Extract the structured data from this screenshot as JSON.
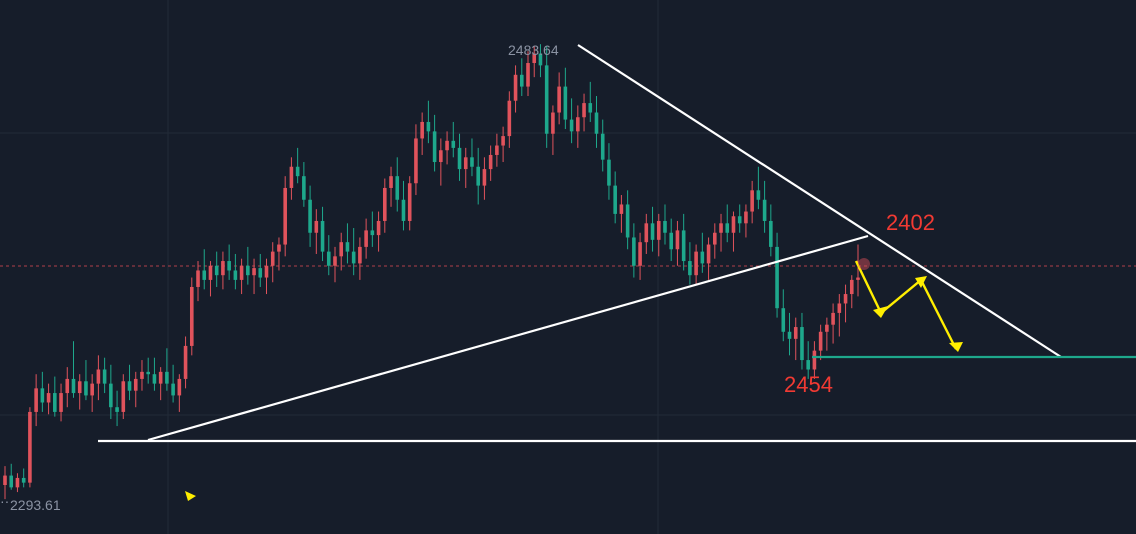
{
  "colors": {
    "background": "#161d2a",
    "grid": "#222a38",
    "up": "#e0535c",
    "down": "#1ea88c",
    "trendline": "#ffffff",
    "support_line": "#1ea88c",
    "projection": "#ffee00",
    "annotation": "#f23a33",
    "dashed_price_line": "#b0404a"
  },
  "chart_data": {
    "type": "candlestick",
    "grid": true,
    "price_labels": {
      "high": "2483.64",
      "low": "2293.61"
    },
    "annotations": [
      {
        "label": "2402",
        "color": "#f23a33"
      },
      {
        "label": "2454",
        "color": "#f23a33"
      }
    ],
    "high": 2483.64,
    "low": 2293.61,
    "ylim": [
      2275,
      2500
    ],
    "candles": [
      [
        2297,
        2305,
        2291,
        2301
      ],
      [
        2301,
        2306,
        2295,
        2296
      ],
      [
        2296,
        2302,
        2294,
        2300
      ],
      [
        2300,
        2304,
        2296,
        2298
      ],
      [
        2298,
        2330,
        2296,
        2328
      ],
      [
        2328,
        2344,
        2322,
        2338
      ],
      [
        2338,
        2345,
        2328,
        2332
      ],
      [
        2332,
        2340,
        2327,
        2336
      ],
      [
        2336,
        2343,
        2326,
        2328
      ],
      [
        2328,
        2340,
        2324,
        2336
      ],
      [
        2336,
        2347,
        2330,
        2342
      ],
      [
        2342,
        2358,
        2334,
        2336
      ],
      [
        2336,
        2344,
        2329,
        2341
      ],
      [
        2341,
        2350,
        2333,
        2335
      ],
      [
        2335,
        2344,
        2328,
        2340
      ],
      [
        2340,
        2352,
        2333,
        2346
      ],
      [
        2346,
        2351,
        2336,
        2340
      ],
      [
        2340,
        2348,
        2325,
        2330
      ],
      [
        2330,
        2337,
        2322,
        2328
      ],
      [
        2328,
        2344,
        2325,
        2341
      ],
      [
        2341,
        2348,
        2333,
        2337
      ],
      [
        2337,
        2345,
        2330,
        2342
      ],
      [
        2342,
        2350,
        2337,
        2345
      ],
      [
        2345,
        2351,
        2340,
        2344
      ],
      [
        2344,
        2351,
        2337,
        2340
      ],
      [
        2340,
        2347,
        2333,
        2345
      ],
      [
        2345,
        2355,
        2337,
        2340
      ],
      [
        2340,
        2348,
        2332,
        2335
      ],
      [
        2335,
        2344,
        2328,
        2342
      ],
      [
        2342,
        2360,
        2338,
        2356
      ],
      [
        2356,
        2385,
        2352,
        2381
      ],
      [
        2381,
        2392,
        2375,
        2388
      ],
      [
        2388,
        2397,
        2380,
        2384
      ],
      [
        2384,
        2392,
        2377,
        2390
      ],
      [
        2390,
        2396,
        2381,
        2386
      ],
      [
        2386,
        2396,
        2380,
        2392
      ],
      [
        2392,
        2399,
        2384,
        2388
      ],
      [
        2388,
        2395,
        2380,
        2384
      ],
      [
        2384,
        2393,
        2378,
        2390
      ],
      [
        2390,
        2398,
        2382,
        2386
      ],
      [
        2386,
        2393,
        2378,
        2389
      ],
      [
        2389,
        2395,
        2381,
        2385
      ],
      [
        2385,
        2393,
        2378,
        2390
      ],
      [
        2390,
        2400,
        2383,
        2396
      ],
      [
        2396,
        2402,
        2388,
        2399
      ],
      [
        2399,
        2428,
        2394,
        2423
      ],
      [
        2423,
        2436,
        2418,
        2432
      ],
      [
        2432,
        2440,
        2425,
        2428
      ],
      [
        2428,
        2434,
        2415,
        2418
      ],
      [
        2418,
        2424,
        2398,
        2404
      ],
      [
        2404,
        2414,
        2395,
        2409
      ],
      [
        2409,
        2415,
        2392,
        2396
      ],
      [
        2396,
        2403,
        2386,
        2390
      ],
      [
        2390,
        2398,
        2383,
        2394
      ],
      [
        2394,
        2404,
        2388,
        2400
      ],
      [
        2400,
        2408,
        2391,
        2396
      ],
      [
        2396,
        2406,
        2386,
        2391
      ],
      [
        2391,
        2402,
        2384,
        2398
      ],
      [
        2398,
        2410,
        2393,
        2405
      ],
      [
        2405,
        2413,
        2398,
        2403
      ],
      [
        2403,
        2413,
        2396,
        2409
      ],
      [
        2409,
        2427,
        2404,
        2423
      ],
      [
        2423,
        2432,
        2415,
        2428
      ],
      [
        2428,
        2436,
        2413,
        2418
      ],
      [
        2418,
        2426,
        2405,
        2409
      ],
      [
        2409,
        2428,
        2405,
        2425
      ],
      [
        2425,
        2450,
        2420,
        2444
      ],
      [
        2444,
        2455,
        2437,
        2451
      ],
      [
        2451,
        2460,
        2442,
        2447
      ],
      [
        2447,
        2454,
        2430,
        2434
      ],
      [
        2434,
        2444,
        2424,
        2439
      ],
      [
        2439,
        2447,
        2433,
        2443
      ],
      [
        2443,
        2451,
        2436,
        2440
      ],
      [
        2440,
        2446,
        2426,
        2431
      ],
      [
        2431,
        2440,
        2423,
        2436
      ],
      [
        2436,
        2444,
        2428,
        2432
      ],
      [
        2432,
        2440,
        2416,
        2424
      ],
      [
        2424,
        2436,
        2418,
        2431
      ],
      [
        2431,
        2441,
        2426,
        2437
      ],
      [
        2437,
        2446,
        2432,
        2441
      ],
      [
        2441,
        2449,
        2434,
        2445
      ],
      [
        2445,
        2464,
        2440,
        2460
      ],
      [
        2460,
        2475,
        2455,
        2471
      ],
      [
        2471,
        2478,
        2462,
        2466
      ],
      [
        2466,
        2481,
        2462,
        2476
      ],
      [
        2476,
        2483,
        2470,
        2480
      ],
      [
        2480,
        2484,
        2470,
        2475
      ],
      [
        2475,
        2483,
        2440,
        2446
      ],
      [
        2446,
        2458,
        2437,
        2455
      ],
      [
        2455,
        2472,
        2450,
        2466
      ],
      [
        2466,
        2474,
        2448,
        2452
      ],
      [
        2452,
        2461,
        2442,
        2447
      ],
      [
        2447,
        2458,
        2440,
        2453
      ],
      [
        2453,
        2463,
        2447,
        2459
      ],
      [
        2459,
        2468,
        2451,
        2455
      ],
      [
        2455,
        2462,
        2440,
        2446
      ],
      [
        2446,
        2452,
        2430,
        2435
      ],
      [
        2435,
        2442,
        2418,
        2424
      ],
      [
        2424,
        2430,
        2408,
        2412
      ],
      [
        2412,
        2420,
        2404,
        2416
      ],
      [
        2416,
        2422,
        2397,
        2402
      ],
      [
        2402,
        2408,
        2385,
        2390
      ],
      [
        2390,
        2404,
        2384,
        2400
      ],
      [
        2400,
        2412,
        2395,
        2408
      ],
      [
        2408,
        2415,
        2396,
        2401
      ],
      [
        2401,
        2412,
        2394,
        2409
      ],
      [
        2409,
        2416,
        2399,
        2404
      ],
      [
        2404,
        2410,
        2392,
        2397
      ],
      [
        2397,
        2409,
        2390,
        2405
      ],
      [
        2405,
        2412,
        2388,
        2392
      ],
      [
        2392,
        2400,
        2382,
        2386
      ],
      [
        2386,
        2399,
        2382,
        2396
      ],
      [
        2396,
        2404,
        2387,
        2391
      ],
      [
        2391,
        2402,
        2384,
        2399
      ],
      [
        2399,
        2408,
        2393,
        2404
      ],
      [
        2404,
        2412,
        2396,
        2408
      ],
      [
        2408,
        2416,
        2400,
        2404
      ],
      [
        2404,
        2413,
        2396,
        2411
      ],
      [
        2411,
        2416,
        2404,
        2408
      ],
      [
        2408,
        2416,
        2402,
        2413
      ],
      [
        2413,
        2426,
        2408,
        2422
      ],
      [
        2422,
        2432,
        2414,
        2418
      ],
      [
        2418,
        2426,
        2404,
        2409
      ],
      [
        2409,
        2416,
        2394,
        2398
      ],
      [
        2398,
        2404,
        2368,
        2372
      ],
      [
        2372,
        2380,
        2358,
        2362
      ],
      [
        2362,
        2370,
        2352,
        2359
      ],
      [
        2359,
        2368,
        2350,
        2364
      ],
      [
        2364,
        2370,
        2346,
        2350
      ],
      [
        2350,
        2358,
        2342,
        2346
      ],
      [
        2346,
        2358,
        2342,
        2354
      ],
      [
        2354,
        2365,
        2350,
        2362
      ],
      [
        2362,
        2368,
        2354,
        2365
      ],
      [
        2365,
        2374,
        2357,
        2370
      ],
      [
        2370,
        2378,
        2360,
        2374
      ],
      [
        2374,
        2382,
        2366,
        2378
      ],
      [
        2378,
        2386,
        2372,
        2384
      ],
      [
        2384,
        2399,
        2377,
        2385
      ]
    ]
  }
}
